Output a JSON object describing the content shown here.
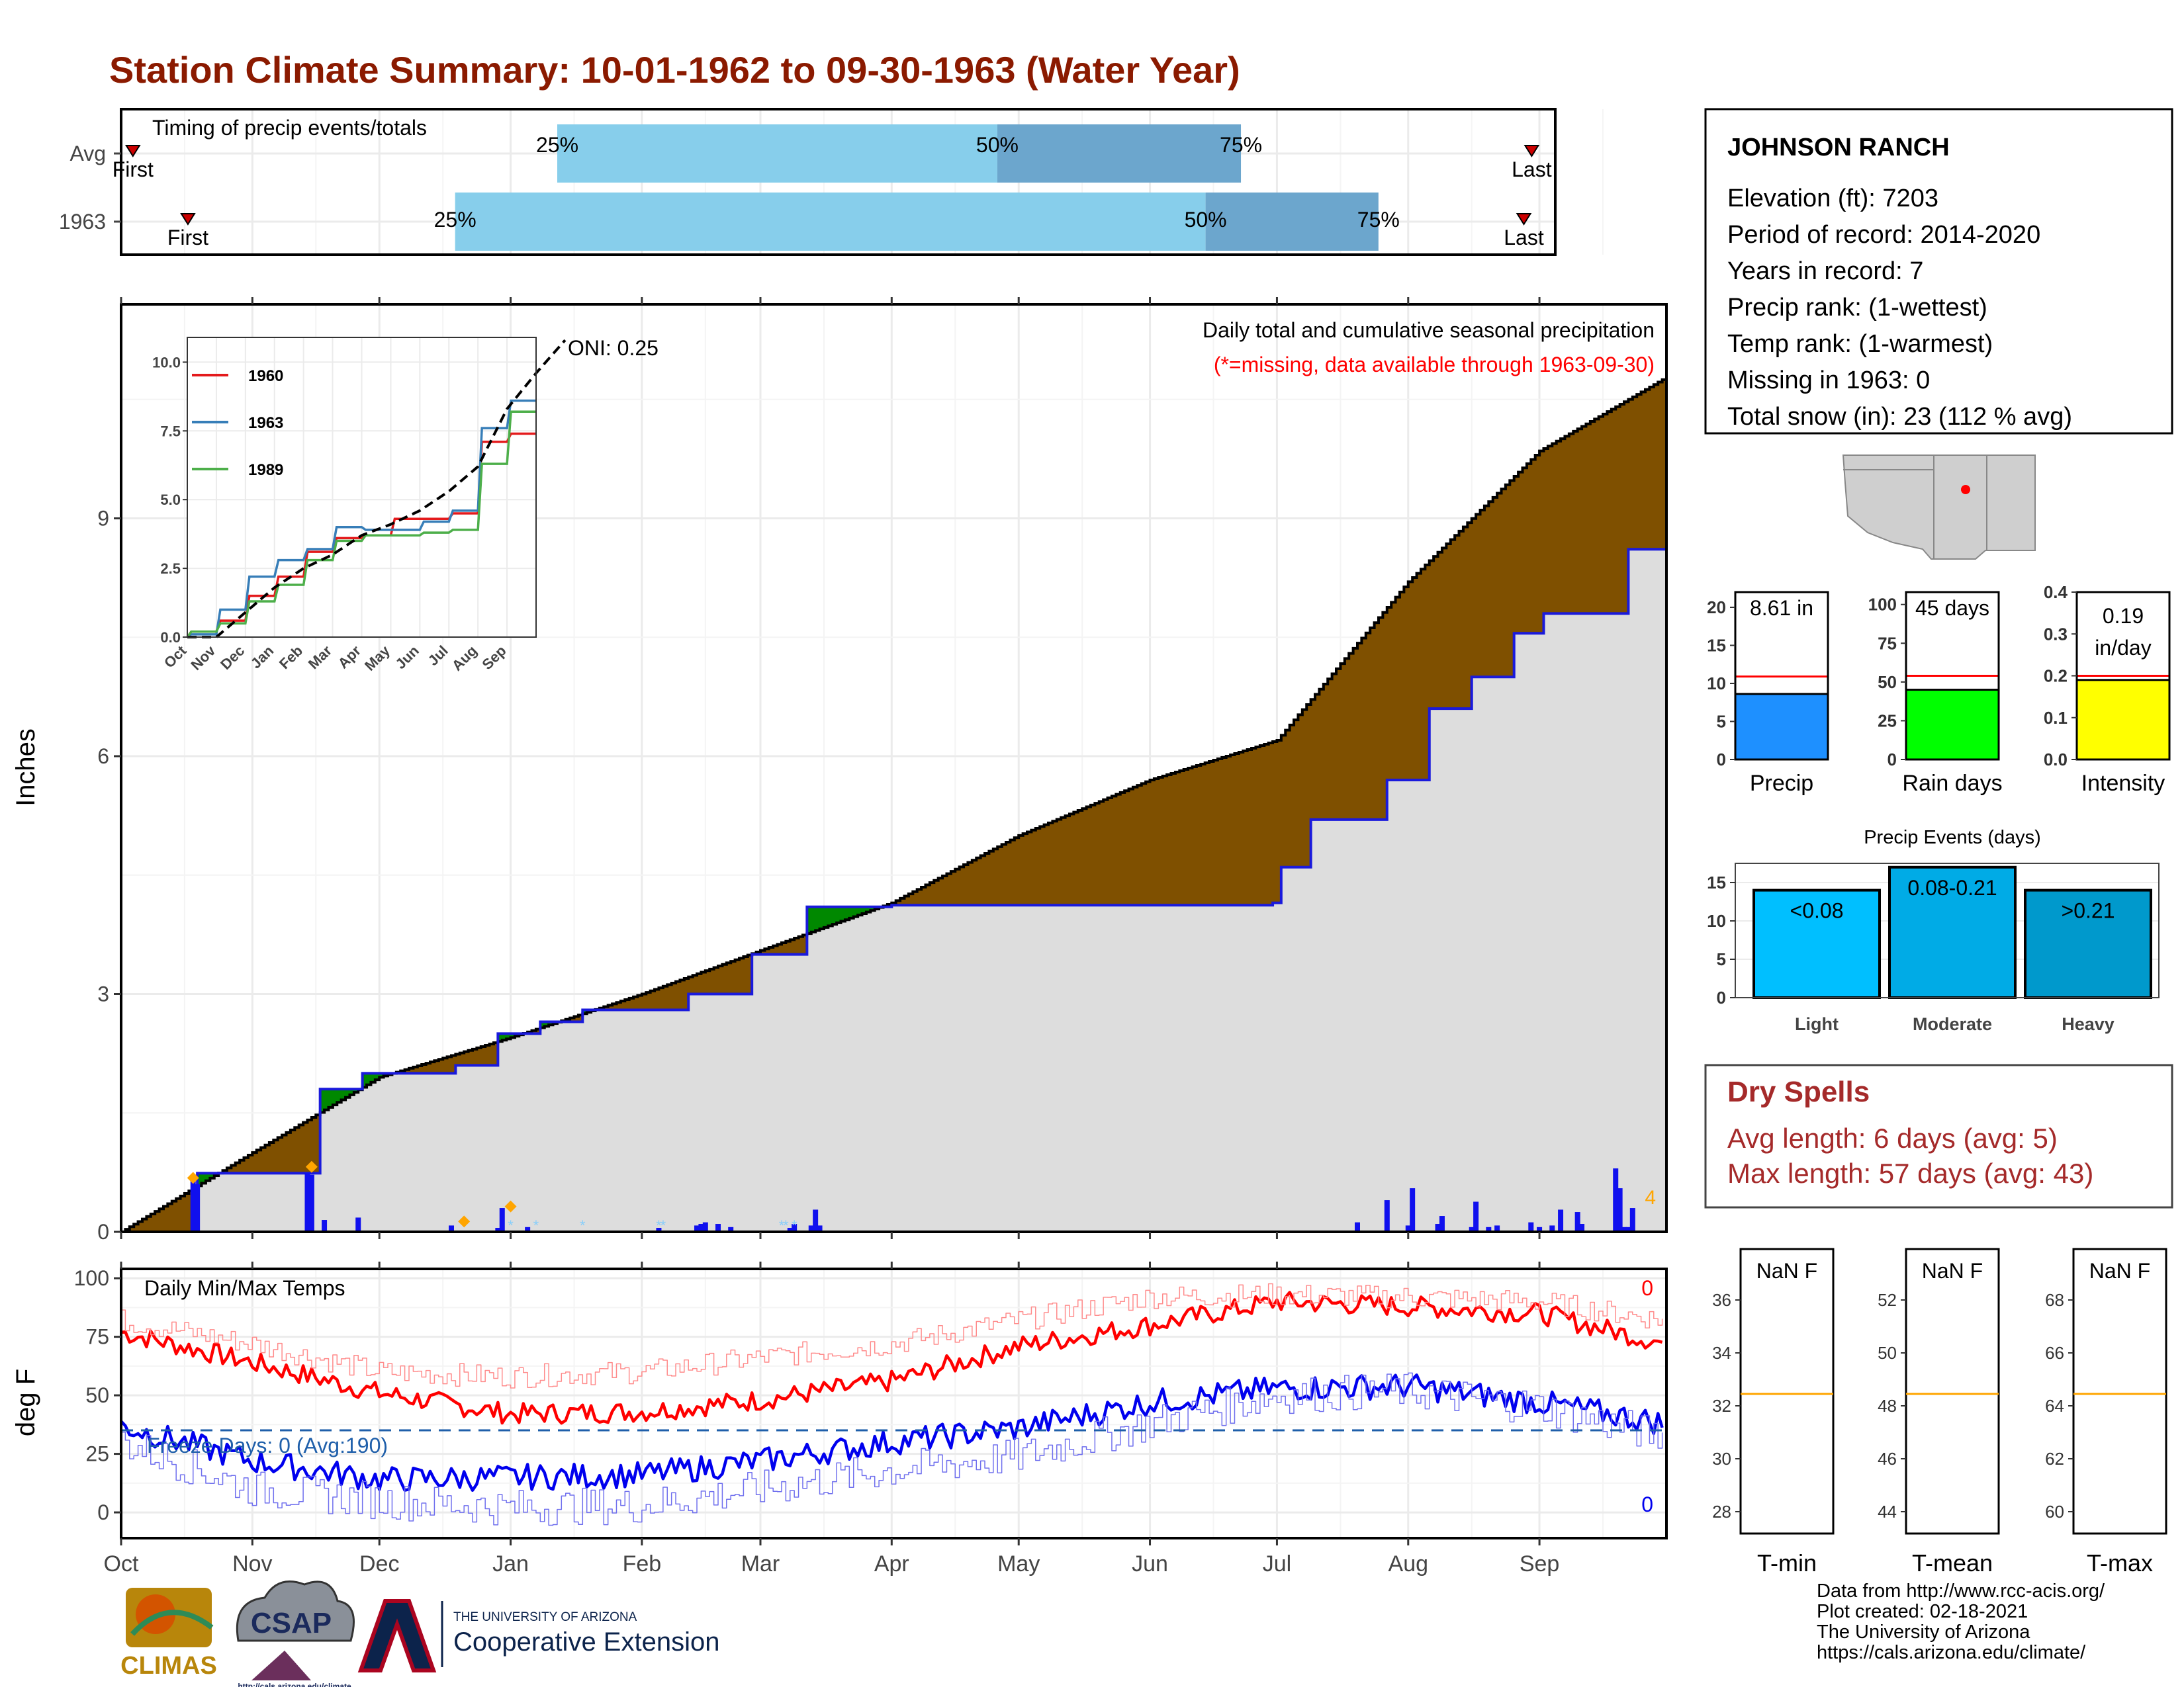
{
  "title": "Station Climate Summary: 10-01-1962 to 09-30-1963 (Water Year)",
  "colors": {
    "title": "#8b1a00",
    "cum_avg_fill": "#7f5000",
    "cum_green": "#008800",
    "cum_gray": "#dddddd",
    "cum_line": "#1a1adc",
    "quartile_light": "#87ceeb",
    "quartile_dark": "#6ca6cd",
    "tmax_line": "#ff0000",
    "tmin_line": "#0000ee",
    "precip_bar": "#1e90ff",
    "rain_bar": "#00ff00",
    "intensity_bar": "#ffff00",
    "avg_line": "#ff0000",
    "orange": "#ffa500",
    "dry_spell": "#a52a2a"
  },
  "timing": {
    "title": "Timing of precip events/totals",
    "rows": [
      {
        "label": "Avg",
        "first": "First",
        "last": "Last",
        "q25": "25%",
        "q50": "50%",
        "q75": "75%",
        "first_day": 3,
        "q25_day": 111,
        "q50_day": 223,
        "q75_day": 285,
        "last_day": 359
      },
      {
        "label": "1963",
        "first": "First",
        "last": "Last",
        "q25": "25%",
        "q50": "50%",
        "q75": "75%",
        "first_day": 17,
        "q25_day": 85,
        "q50_day": 276,
        "q75_day": 320,
        "last_day": 357
      }
    ]
  },
  "precip_panel": {
    "ylabel": "Inches",
    "yticks": [
      "0",
      "3",
      "6",
      "9"
    ],
    "months": [
      "Oct",
      "Nov",
      "Dec",
      "Jan",
      "Feb",
      "Mar",
      "Apr",
      "May",
      "Jun",
      "Jul",
      "Aug",
      "Sep"
    ],
    "legend_line1": "Daily total and cumulative seasonal precipitation",
    "legend_line2": "(*=missing, data available through 1963-09-30)",
    "oni": "ONI: 0.25",
    "corner_count": "4"
  },
  "inset": {
    "yticks": [
      "0.0",
      "2.5",
      "5.0",
      "7.5",
      "10.0"
    ],
    "months": [
      "Oct",
      "Nov",
      "Dec",
      "Jan",
      "Feb",
      "Mar",
      "Apr",
      "May",
      "Jun",
      "Jul",
      "Aug",
      "Sep"
    ],
    "series": [
      {
        "name": "1960",
        "color": "#e41a1c"
      },
      {
        "name": "1963",
        "color": "#377eb8"
      },
      {
        "name": "1989",
        "color": "#4daf4a"
      }
    ]
  },
  "temp_panel": {
    "ylabel": "deg F",
    "yticks": [
      "0",
      "25",
      "50",
      "75",
      "100"
    ],
    "title": "Daily Min/Max Temps",
    "freeze": "Freeze Days: 0 (Avg:190)",
    "max_count": "0",
    "min_count": "0",
    "months": [
      "Oct",
      "Nov",
      "Dec",
      "Jan",
      "Feb",
      "Mar",
      "Apr",
      "May",
      "Jun",
      "Jul",
      "Aug",
      "Sep"
    ]
  },
  "station": {
    "name": "JOHNSON RANCH",
    "elevation": "Elevation (ft): 7203",
    "period": "Period of record: 2014-2020",
    "years": "Years in record: 7",
    "precip_rank": "Precip rank:  (1-wettest)",
    "temp_rank": "Temp rank:  (1-warmest)",
    "missing": "Missing in 1963: 0",
    "snow": "Total snow (in): 23 (112 % avg)"
  },
  "mini_bars": [
    {
      "label": "Precip",
      "value_label": "8.61 in",
      "value": 8.61,
      "avg": 10.9,
      "yticks": [
        "0",
        "5",
        "10",
        "15",
        "20"
      ],
      "ymax": 22
    },
    {
      "label": "Rain days",
      "value_label": "45 days",
      "value": 45,
      "avg": 54,
      "yticks": [
        "0",
        "25",
        "50",
        "75",
        "100"
      ],
      "ymax": 108
    },
    {
      "label": "Intensity",
      "value_label_1": "0.19",
      "value_label_2": "in/day",
      "value": 0.19,
      "avg": 0.2,
      "yticks": [
        "0.0",
        "0.1",
        "0.2",
        "0.3",
        "0.4"
      ],
      "ymax": 0.4
    }
  ],
  "precip_events": {
    "title": "Precip Events (days)",
    "yticks": [
      "0",
      "5",
      "10",
      "15"
    ],
    "bars": [
      {
        "label": "Light",
        "value_label": "<0.08",
        "value": 14,
        "color": "#00bfff"
      },
      {
        "label": "Moderate",
        "value_label": "0.08-0.21",
        "value": 17,
        "color": "#00abe6"
      },
      {
        "label": "Heavy",
        "value_label": ">0.21",
        "value": 14,
        "color": "#0099cc"
      }
    ]
  },
  "dry_spells": {
    "title": "Dry Spells",
    "avg": "Avg length: 6 days (avg: 5)",
    "max": "Max length: 57 days (avg: 43)"
  },
  "temp_boxes": [
    {
      "label": "T-min",
      "value": "NaN F",
      "yticks": [
        "28",
        "30",
        "32",
        "34",
        "36"
      ]
    },
    {
      "label": "T-mean",
      "value": "NaN F",
      "yticks": [
        "44",
        "46",
        "48",
        "50",
        "52"
      ]
    },
    {
      "label": "T-max",
      "value": "NaN F",
      "yticks": [
        "60",
        "62",
        "64",
        "66",
        "68"
      ]
    }
  ],
  "logos": {
    "climas": "CLIMAS",
    "csap": "CSAP",
    "csap_url": "http://cals.arizona.edu/climate",
    "ua_line1": "THE UNIVERSITY OF ARIZONA",
    "ua_line2": "Cooperative Extension"
  },
  "footer": [
    "Data from http://www.rcc-acis.org/",
    "Plot created: 02-18-2021",
    "The University of Arizona",
    "https://cals.arizona.edu/climate/"
  ],
  "chart_data": [
    {
      "type": "area",
      "title": "Daily total and cumulative seasonal precipitation",
      "ylabel": "Inches",
      "ylim": [
        0,
        11.7
      ],
      "x_unit": "month",
      "cumulative_average": {
        "x": [
          "Oct 1",
          "Nov 1",
          "Dec 1",
          "Jan 1",
          "Feb 1",
          "Mar 1",
          "Apr 1",
          "May 1",
          "Jun 1",
          "Jul 1",
          "Aug 1",
          "Sep 1",
          "Sep 30"
        ],
        "values": [
          0,
          1.0,
          1.95,
          2.45,
          3.0,
          3.55,
          4.15,
          5.0,
          5.7,
          6.2,
          8.2,
          9.85,
          10.75
        ]
      },
      "cumulative_1963": {
        "x": [
          "Oct 1",
          "Oct 19",
          "Nov 16",
          "Nov 17",
          "Nov 27",
          "Dec 19",
          "Dec 29",
          "Jan 8",
          "Jan 18",
          "Feb 12",
          "Feb 27",
          "Mar 12",
          "Apr 1",
          "Jun 30",
          "Jul 2",
          "Jul 9",
          "Jul 27",
          "Aug 6",
          "Aug 16",
          "Aug 26",
          "Sep 2",
          "Sep 22",
          "Sep 30"
        ],
        "values": [
          0,
          0.74,
          0.74,
          1.8,
          2.0,
          2.1,
          2.5,
          2.65,
          2.8,
          3.0,
          3.5,
          4.1,
          4.12,
          4.15,
          4.6,
          5.2,
          5.7,
          6.6,
          7.0,
          7.55,
          7.8,
          8.61,
          8.61
        ]
      },
      "daily_precip": {
        "days": [
          17,
          18,
          44,
          45,
          48,
          56,
          78,
          89,
          90,
          96,
          127,
          136,
          137,
          138,
          141,
          144,
          158,
          159,
          163,
          164,
          165,
          292,
          299,
          304,
          305,
          311,
          312,
          319,
          320,
          323,
          325,
          333,
          335,
          338,
          340,
          344,
          345,
          353,
          354,
          355,
          356,
          357
        ],
        "values": [
          0.72,
          0.6,
          0.74,
          0.72,
          0.15,
          0.18,
          0.08,
          0.05,
          0.3,
          0.06,
          0.05,
          0.08,
          0.1,
          0.12,
          0.1,
          0.06,
          0.05,
          0.1,
          0.08,
          0.28,
          0.08,
          0.12,
          0.4,
          0.08,
          0.55,
          0.1,
          0.2,
          0.06,
          0.38,
          0.06,
          0.08,
          0.12,
          0.06,
          0.08,
          0.28,
          0.25,
          0.1,
          0.8,
          0.55,
          0.06,
          0.06,
          0.3
        ]
      }
    },
    {
      "type": "line",
      "title": "",
      "series": [
        {
          "name": "1960",
          "x": [
            "Oct",
            "Nov",
            "Dec",
            "Jan",
            "Feb",
            "Mar",
            "Apr",
            "May",
            "Jun",
            "Jul",
            "Aug",
            "Sep"
          ],
          "values": [
            0.2,
            0.6,
            1.5,
            2.2,
            3.1,
            3.6,
            3.7,
            4.3,
            4.3,
            4.5,
            7.1,
            7.4
          ]
        },
        {
          "name": "1963",
          "x": [
            "Oct",
            "Nov",
            "Dec",
            "Jan",
            "Feb",
            "Mar",
            "Apr",
            "May",
            "Jun",
            "Jul",
            "Aug",
            "Sep"
          ],
          "values": [
            0.1,
            1.0,
            2.2,
            2.8,
            3.2,
            4.0,
            3.9,
            3.9,
            4.2,
            4.6,
            7.6,
            8.6
          ]
        },
        {
          "name": "1989",
          "x": [
            "Oct",
            "Nov",
            "Dec",
            "Jan",
            "Feb",
            "Mar",
            "Apr",
            "May",
            "Jun",
            "Jul",
            "Aug",
            "Sep"
          ],
          "values": [
            0.2,
            0.5,
            1.3,
            1.9,
            2.8,
            3.5,
            3.7,
            3.7,
            3.8,
            3.9,
            6.3,
            8.2
          ]
        },
        {
          "x": [
            "Oct",
            "Nov",
            "Dec",
            "Jan",
            "Feb",
            "Mar",
            "Apr",
            "May",
            "Jun",
            "Jul",
            "Aug",
            "Sep",
            "Oct"
          ],
          "values": [
            0,
            0.9,
            1.8,
            2.5,
            3.0,
            3.7,
            4.1,
            4.6,
            5.3,
            6.2,
            8.3,
            9.6,
            10.8
          ]
        }
      ],
      "ylim": [
        0,
        10.5
      ]
    },
    {
      "type": "line",
      "title": "Daily Min/Max Temps",
      "ylabel": "deg F",
      "ylim": [
        -10,
        100
      ],
      "series": [
        {
          "name": "Daily max",
          "x": [
            "Oct",
            "Nov",
            "Dec",
            "Jan",
            "Feb",
            "Mar",
            "Apr",
            "May",
            "Jun",
            "Jul",
            "Aug",
            "Sep",
            "Oct"
          ],
          "values": [
            77,
            64,
            51,
            42,
            43,
            48,
            56,
            71,
            80,
            90,
            88,
            85,
            72
          ]
        },
        {
          "name": "Average max",
          "x": [
            "Oct",
            "Nov",
            "Dec",
            "Jan",
            "Feb",
            "Mar",
            "Apr",
            "May",
            "Jun",
            "Jul",
            "Aug",
            "Sep",
            "Oct"
          ],
          "values": [
            82,
            72,
            60,
            58,
            60,
            66,
            72,
            82,
            92,
            93,
            92,
            90,
            82
          ]
        },
        {
          "name": "Daily min",
          "x": [
            "Oct",
            "Nov",
            "Dec",
            "Jan",
            "Feb",
            "Mar",
            "Apr",
            "May",
            "Jun",
            "Jul",
            "Aug",
            "Sep",
            "Oct"
          ],
          "values": [
            37,
            22,
            14,
            15,
            16,
            22,
            30,
            36,
            47,
            53,
            54,
            47,
            38
          ]
        },
        {
          "name": "Average min",
          "x": [
            "Oct",
            "Nov",
            "Dec",
            "Jan",
            "Feb",
            "Mar",
            "Apr",
            "May",
            "Jun",
            "Jul",
            "Aug",
            "Sep",
            "Oct"
          ],
          "values": [
            30,
            10,
            5,
            2,
            3,
            10,
            18,
            24,
            38,
            50,
            52,
            45,
            32
          ]
        }
      ],
      "freeze_threshold": 32
    },
    {
      "type": "bar",
      "title": "Precip Events (days)",
      "categories": [
        "Light",
        "Moderate",
        "Heavy"
      ],
      "values": [
        14,
        17,
        14
      ],
      "ylim": [
        0,
        18
      ]
    }
  ]
}
